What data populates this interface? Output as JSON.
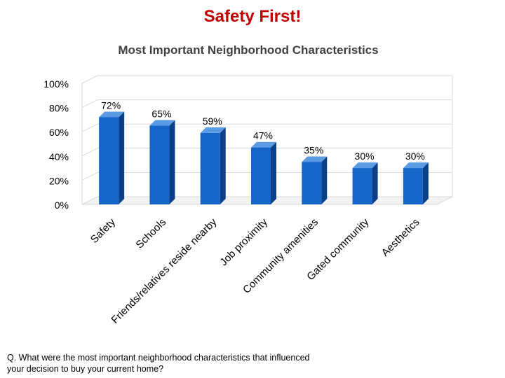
{
  "slide": {
    "title": "Safety First!",
    "question": "Q. What were the most important neighborhood characteristics that influenced your decision to buy your current home?"
  },
  "colors": {
    "title": "#c00000",
    "bar_front": "#1565c9",
    "bar_side": "#0b3f87",
    "bar_top": "#5b9be3",
    "grid": "#d9d9d9"
  },
  "chart_data": {
    "type": "bar",
    "title": "Most Important Neighborhood Characteristics",
    "categories": [
      "Safety",
      "Schools",
      "Friends/relatives reside nearby",
      "Job proximity",
      "Community amenities",
      "Gated community",
      "Aesthetics"
    ],
    "values": [
      72,
      65,
      59,
      47,
      35,
      30,
      30
    ],
    "data_labels": [
      "72%",
      "65%",
      "59%",
      "47%",
      "35%",
      "30%",
      "30%"
    ],
    "ylim": [
      0,
      100
    ],
    "y_ticks": [
      0,
      20,
      40,
      60,
      80,
      100
    ],
    "y_tick_labels": [
      "0%",
      "20%",
      "40%",
      "60%",
      "80%",
      "100%"
    ],
    "xlabel": "",
    "ylabel": "",
    "grid": true,
    "legend": "none",
    "style": "3d-column"
  }
}
